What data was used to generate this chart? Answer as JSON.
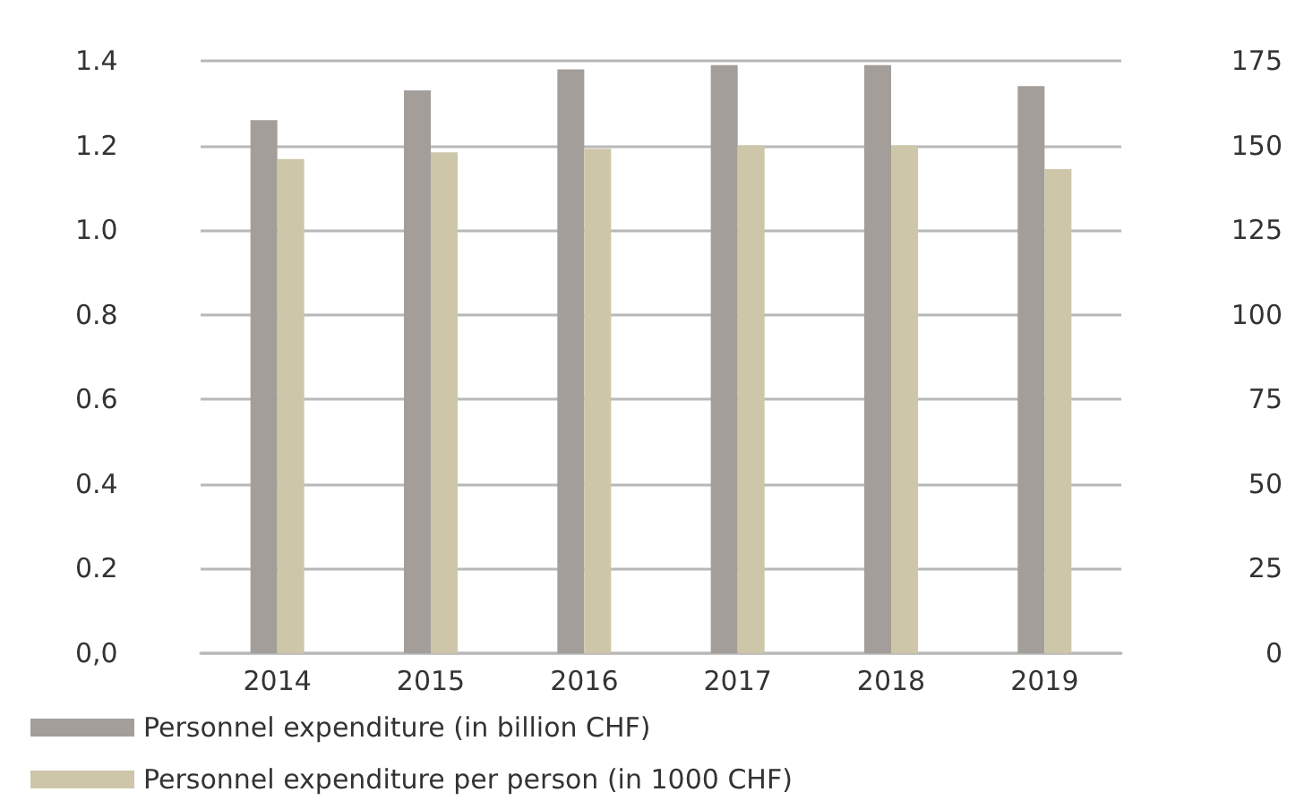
{
  "chart_data": {
    "type": "bar",
    "categories": [
      "2014",
      "2015",
      "2016",
      "2017",
      "2018",
      "2019"
    ],
    "series": [
      {
        "name": "Personnel expenditure (in billion CHF)",
        "color": "#a39e99",
        "values": [
          1.26,
          1.33,
          1.38,
          1.39,
          1.39,
          1.34
        ]
      },
      {
        "name": "Personnel expenditure per person (in 1000 CHF)",
        "color": "#cdc6a9",
        "axis": "y2",
        "values": [
          146,
          148,
          149,
          150,
          150,
          143
        ]
      }
    ],
    "ylim": [
      0,
      1.4
    ],
    "yticks": [
      {
        "value": 0,
        "label": "0,0"
      },
      0.2,
      0.4,
      0.6,
      0.8,
      {
        "value": 1,
        "label": "1.0"
      },
      1.2,
      1.4
    ],
    "y2lim": [
      0,
      175
    ],
    "y2ticks": [
      0,
      25,
      50,
      75,
      100,
      125,
      150,
      175
    ],
    "grid": "y",
    "legend": "bottom left"
  }
}
